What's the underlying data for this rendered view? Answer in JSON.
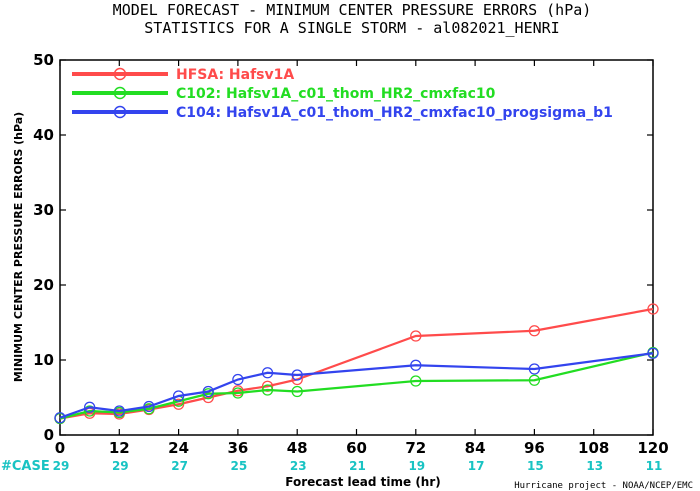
{
  "title_line1": "MODEL FORECAST - MINIMUM CENTER PRESSURE ERRORS (hPa)",
  "title_line2": "STATISTICS FOR A SINGLE STORM - al082021_HENRI",
  "credit": "Hurricane project - NOAA/NCEP/EMC",
  "case_label": "#CASE",
  "chart_data": {
    "type": "line",
    "xlabel": "Forecast lead time (hr)",
    "ylabel": "MINIMUM CENTER PRESSURE ERRORS (hPa)",
    "xlim": [
      0,
      120
    ],
    "ylim": [
      0,
      50
    ],
    "x_ticks": [
      0,
      12,
      24,
      36,
      48,
      60,
      72,
      84,
      96,
      108,
      120
    ],
    "y_ticks": [
      0,
      10,
      20,
      30,
      40,
      50
    ],
    "grid": false,
    "legend_placement": "top-left",
    "cases": {
      "x": [
        0,
        12,
        24,
        36,
        48,
        60,
        72,
        84,
        96,
        108,
        120
      ],
      "counts": [
        29,
        29,
        27,
        25,
        23,
        21,
        19,
        17,
        15,
        13,
        11
      ]
    },
    "series": [
      {
        "name": "HFSA:  Hafsv1A",
        "color": "#ff4b4b",
        "x": [
          0,
          6,
          12,
          18,
          24,
          30,
          36,
          42,
          48,
          72,
          96,
          120
        ],
        "y": [
          2.2,
          2.9,
          2.8,
          3.4,
          4.1,
          5.0,
          5.9,
          6.5,
          7.4,
          13.2,
          13.9,
          16.8
        ]
      },
      {
        "name": "C102:  Hafsv1A_c01_thom_HR2_cmxfac10",
        "color": "#22dd22",
        "x": [
          0,
          6,
          12,
          18,
          24,
          30,
          36,
          42,
          48,
          72,
          96,
          120
        ],
        "y": [
          2.2,
          3.2,
          3.0,
          3.5,
          4.5,
          5.5,
          5.6,
          6.0,
          5.8,
          7.2,
          7.3,
          11.0
        ]
      },
      {
        "name": "C104:  Hafsv1A_c01_thom_HR2_cmxfac10_progsigma_b1",
        "color": "#3344ee",
        "x": [
          0,
          6,
          12,
          18,
          24,
          30,
          36,
          42,
          48,
          72,
          96,
          120
        ],
        "y": [
          2.3,
          3.7,
          3.2,
          3.8,
          5.2,
          5.8,
          7.4,
          8.3,
          8.0,
          9.3,
          8.8,
          10.9
        ]
      }
    ]
  }
}
